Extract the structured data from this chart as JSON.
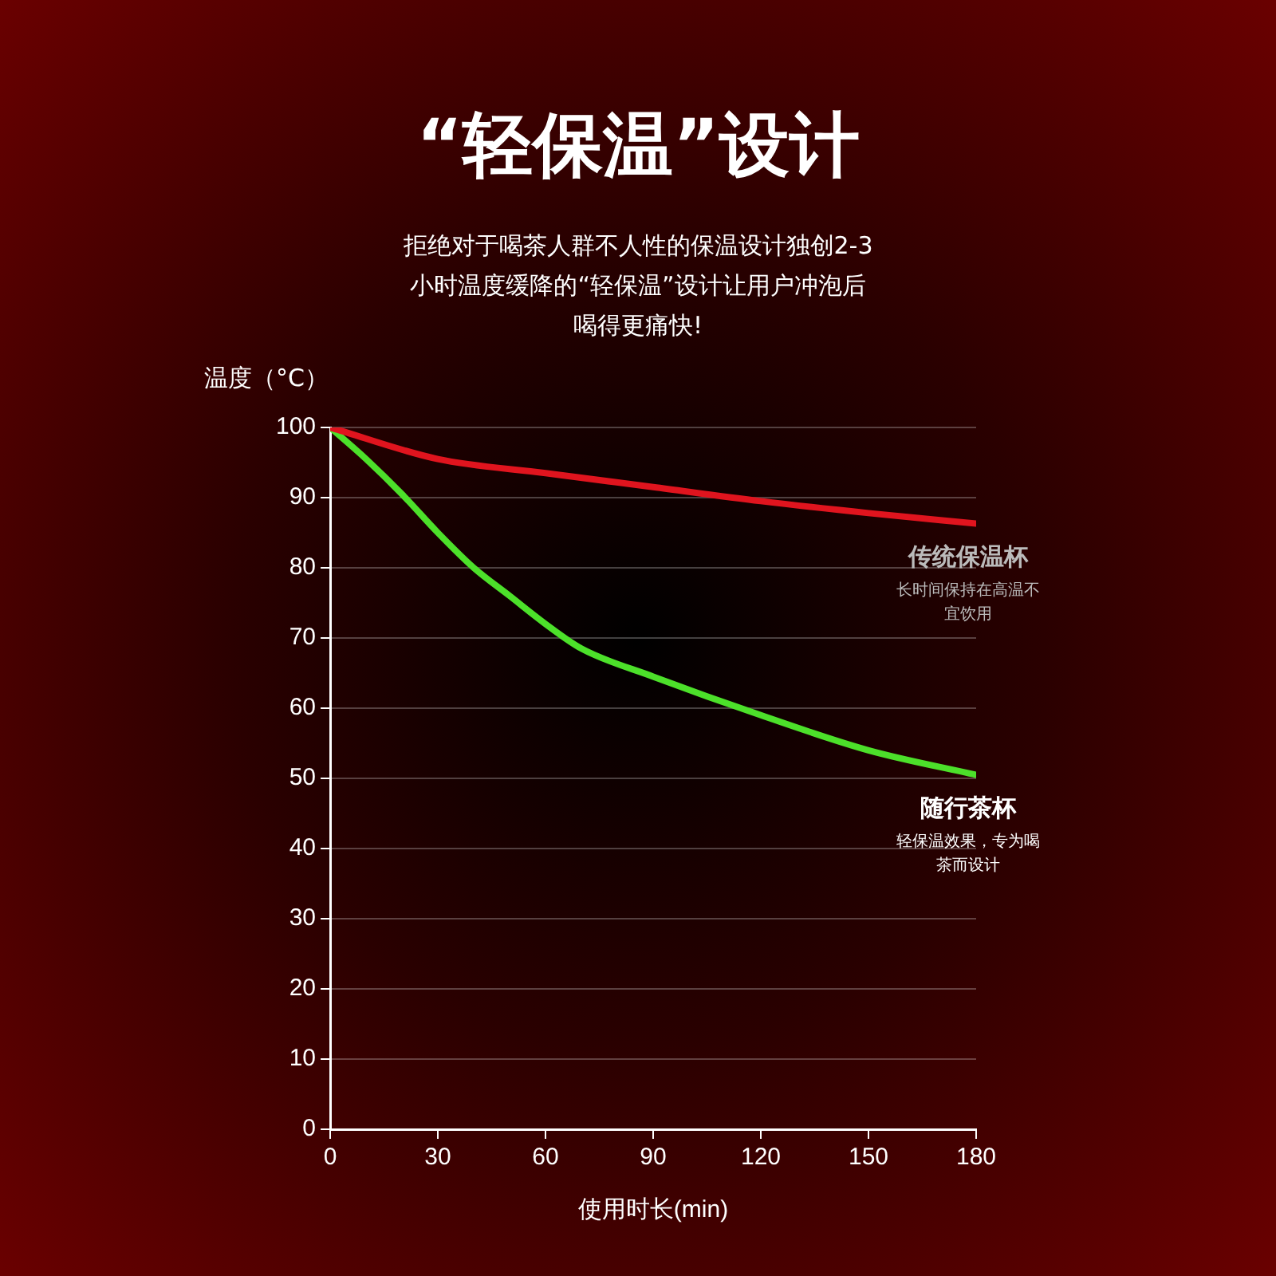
{
  "chart_data": {
    "type": "line",
    "title": "“轻保温”设计",
    "subtitle": "拒绝对于喝茶人群不人性的保温设计独创2-3小时温度缓降的“轻保温”设计让用户冲泡后喝得更痛快!",
    "xlabel": "使用时长(min)",
    "ylabel": "温度（°C）",
    "xlim": [
      0,
      180
    ],
    "xticks": [
      0,
      30,
      60,
      90,
      120,
      150,
      180
    ],
    "ylim": [
      0,
      100
    ],
    "yticks": [
      0,
      10,
      20,
      30,
      40,
      50,
      60,
      70,
      80,
      90,
      100
    ],
    "grid": "y",
    "legend": false,
    "marker": "none",
    "line_style": "solid",
    "series": [
      {
        "name": "传统保温杯",
        "color": "#e0141e",
        "x": [
          0,
          30,
          60,
          90,
          120,
          150,
          180
        ],
        "values": [
          100,
          95.5,
          93.5,
          91.5,
          89.5,
          87.8,
          86.3
        ]
      },
      {
        "name": "随行茶杯",
        "color": "#4ce02a",
        "x": [
          0,
          10,
          20,
          30,
          40,
          50,
          60,
          70,
          90,
          120,
          150,
          180
        ],
        "values": [
          100,
          95.5,
          90.5,
          85,
          80,
          76,
          72,
          68.5,
          64.5,
          59,
          54,
          50.5
        ]
      }
    ],
    "annotations": [
      "长时间保持在高温不宜饮用",
      "轻保温效果，专为喝茶而设计"
    ]
  }
}
